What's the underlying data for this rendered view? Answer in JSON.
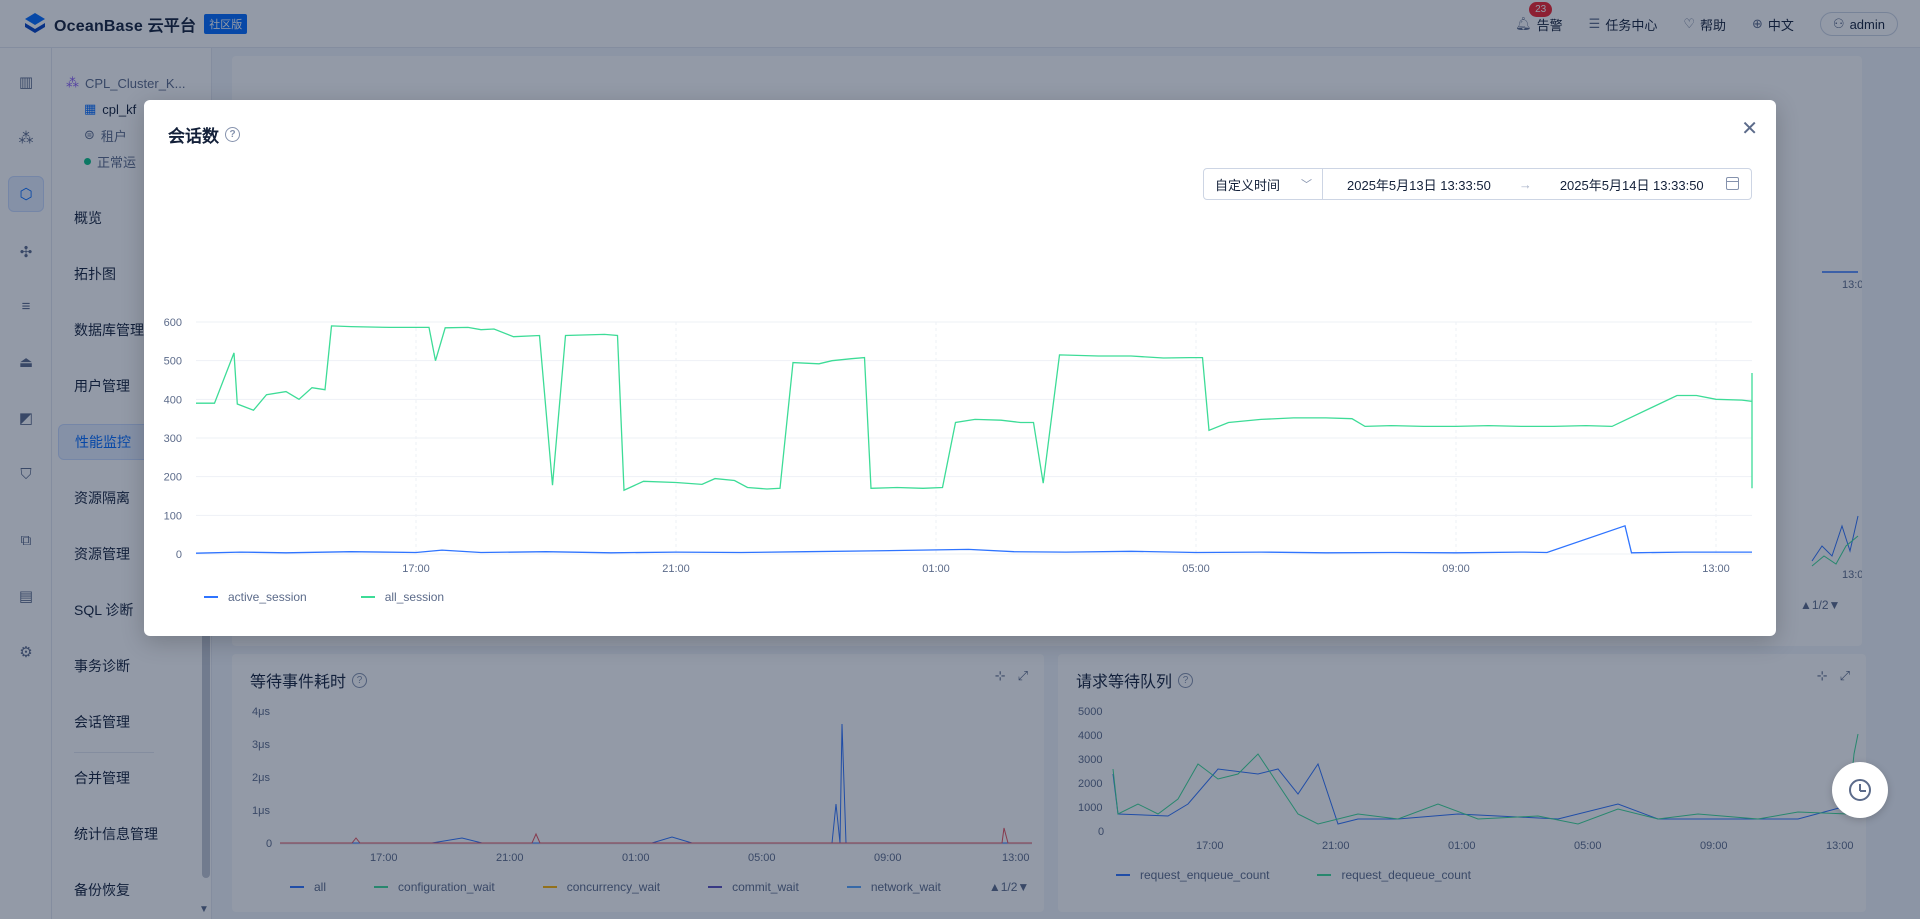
{
  "topbar": {
    "brand": "OceanBase 云平台",
    "edition_tag": "社区版",
    "alerts_label": "告警",
    "alerts_count": "23",
    "tasks_label": "任务中心",
    "help_label": "帮助",
    "lang_label": "中文",
    "user_label": "admin"
  },
  "sidebar": {
    "cluster_name": "CPL_Cluster_K...",
    "tenant_name": "cpl_kf",
    "tenant_type": "租户",
    "status_text": "正常运",
    "items": [
      {
        "label": "概览"
      },
      {
        "label": "拓扑图"
      },
      {
        "label": "数据库管理"
      },
      {
        "label": "用户管理"
      },
      {
        "label": "性能监控"
      },
      {
        "label": "资源隔离"
      },
      {
        "label": "资源管理"
      },
      {
        "label": "SQL 诊断"
      },
      {
        "label": "事务诊断"
      },
      {
        "label": "会话管理"
      },
      {
        "label": "合并管理"
      },
      {
        "label": "统计信息管理"
      },
      {
        "label": "备份恢复"
      }
    ],
    "rail_icons": [
      "bar-chart-icon",
      "cluster-icon",
      "tenant-icon",
      "topology-icon",
      "list-icon",
      "alarm-icon",
      "monitor-icon",
      "shield-icon",
      "copy-icon",
      "report-icon",
      "settings-icon"
    ]
  },
  "background": {
    "top_right_ticks": [
      "13:00"
    ],
    "mid_right_ticks": [
      "13:00"
    ],
    "mid_right_pager": "▲1/2▼",
    "wait_panel": {
      "title": "等待事件耗时",
      "y_ticks": [
        "4μs",
        "3μs",
        "2μs",
        "1μs",
        "0"
      ],
      "x_ticks": [
        "17:00",
        "21:00",
        "01:00",
        "05:00",
        "09:00",
        "13:00"
      ],
      "legend": [
        "all",
        "configuration_wait",
        "concurrency_wait",
        "commit_wait",
        "network_wait"
      ],
      "pager": "▲1/2▼"
    },
    "queue_panel": {
      "title": "请求等待队列",
      "y_ticks": [
        "5000",
        "4000",
        "3000",
        "2000",
        "1000",
        "0"
      ],
      "x_ticks": [
        "17:00",
        "21:00",
        "01:00",
        "05:00",
        "09:00",
        "13:00"
      ],
      "legend": [
        "request_enqueue_count",
        "request_dequeue_count"
      ]
    }
  },
  "modal": {
    "title": "会话数",
    "time_mode": "自定义时间",
    "start_time": "2025年5月13日 13:33:50",
    "end_time": "2025年5月14日 13:33:50",
    "time_arrow": "→",
    "colors": {
      "active_session": "#2f74ff",
      "all_session": "#3ddc97"
    }
  },
  "chart_data": {
    "type": "line",
    "title": "会话数",
    "x_ticks": [
      "17:00",
      "21:00",
      "01:00",
      "05:00",
      "09:00",
      "13:00"
    ],
    "y_ticks": [
      0,
      100,
      200,
      300,
      400,
      500,
      600
    ],
    "ylim": [
      0,
      600
    ],
    "xlim_hours": [
      13.56,
      37.56
    ],
    "grid": true,
    "legend_position": "bottom-left",
    "series": [
      {
        "name": "active_session",
        "color": "#2f74ff",
        "points": [
          [
            13.56,
            2
          ],
          [
            14.3,
            5
          ],
          [
            15.0,
            3
          ],
          [
            16.0,
            6
          ],
          [
            17.0,
            4
          ],
          [
            17.4,
            10
          ],
          [
            18.0,
            4
          ],
          [
            19.0,
            6
          ],
          [
            20.0,
            3
          ],
          [
            21.0,
            5
          ],
          [
            22.0,
            4
          ],
          [
            23.0,
            6
          ],
          [
            24.0,
            8
          ],
          [
            25.5,
            12
          ],
          [
            26.2,
            6
          ],
          [
            27.0,
            5
          ],
          [
            28.0,
            7
          ],
          [
            29.0,
            4
          ],
          [
            30.0,
            5
          ],
          [
            31.0,
            3
          ],
          [
            32.0,
            4
          ],
          [
            33.0,
            3
          ],
          [
            34.0,
            5
          ],
          [
            34.4,
            4
          ],
          [
            35.6,
            73
          ],
          [
            35.7,
            3
          ],
          [
            36.5,
            5
          ],
          [
            37.56,
            5
          ]
        ]
      },
      {
        "name": "all_session",
        "color": "#3ddc97",
        "points": [
          [
            13.56,
            390
          ],
          [
            13.8,
            390
          ],
          [
            13.9,
            390
          ],
          [
            14.2,
            520
          ],
          [
            14.25,
            388
          ],
          [
            14.5,
            372
          ],
          [
            14.7,
            412
          ],
          [
            15.0,
            420
          ],
          [
            15.2,
            400
          ],
          [
            15.4,
            430
          ],
          [
            15.6,
            425
          ],
          [
            15.7,
            590
          ],
          [
            16.0,
            588
          ],
          [
            16.6,
            586
          ],
          [
            17.0,
            586
          ],
          [
            17.2,
            586
          ],
          [
            17.3,
            500
          ],
          [
            17.45,
            585
          ],
          [
            17.8,
            586
          ],
          [
            18.0,
            580
          ],
          [
            18.2,
            582
          ],
          [
            18.5,
            562
          ],
          [
            18.9,
            565
          ],
          [
            19.1,
            178
          ],
          [
            19.3,
            565
          ],
          [
            19.9,
            568
          ],
          [
            20.1,
            565
          ],
          [
            20.2,
            165
          ],
          [
            20.5,
            188
          ],
          [
            21.0,
            185
          ],
          [
            21.4,
            180
          ],
          [
            21.6,
            195
          ],
          [
            21.9,
            190
          ],
          [
            22.1,
            172
          ],
          [
            22.4,
            168
          ],
          [
            22.6,
            170
          ],
          [
            22.8,
            495
          ],
          [
            23.2,
            492
          ],
          [
            23.4,
            500
          ],
          [
            23.7,
            505
          ],
          [
            23.9,
            508
          ],
          [
            24.0,
            170
          ],
          [
            24.4,
            172
          ],
          [
            24.8,
            170
          ],
          [
            25.1,
            172
          ],
          [
            25.3,
            340
          ],
          [
            25.6,
            348
          ],
          [
            26.0,
            346
          ],
          [
            26.3,
            340
          ],
          [
            26.5,
            340
          ],
          [
            26.65,
            183
          ],
          [
            26.9,
            515
          ],
          [
            27.5,
            512
          ],
          [
            28.0,
            512
          ],
          [
            28.5,
            507
          ],
          [
            28.9,
            508
          ],
          [
            29.1,
            508
          ],
          [
            29.2,
            320
          ],
          [
            29.5,
            340
          ],
          [
            30.0,
            348
          ],
          [
            30.5,
            352
          ],
          [
            31.0,
            352
          ],
          [
            31.4,
            350
          ],
          [
            31.6,
            330
          ],
          [
            32.0,
            332
          ],
          [
            32.5,
            330
          ],
          [
            33.0,
            330
          ],
          [
            33.5,
            332
          ],
          [
            34.0,
            330
          ],
          [
            34.5,
            330
          ],
          [
            35.0,
            332
          ],
          [
            35.4,
            330
          ],
          [
            36.4,
            410
          ],
          [
            36.7,
            410
          ],
          [
            37.0,
            400
          ],
          [
            37.4,
            398
          ],
          [
            37.8,
            395
          ],
          [
            38.2,
            388
          ],
          [
            38.4,
            388
          ],
          [
            38.55,
            185
          ],
          [
            38.8,
            180
          ],
          [
            39.0,
            175
          ],
          [
            39.2,
            175
          ],
          [
            39.4,
            170
          ],
          [
            39.55,
            200
          ],
          [
            39.7,
            320
          ],
          [
            39.9,
            320
          ],
          [
            40.1,
            330
          ],
          [
            40.5,
            332
          ],
          [
            41.0,
            336
          ],
          [
            41.5,
            340
          ],
          [
            41.9,
            342
          ],
          [
            42.1,
            343
          ],
          [
            42.3,
            460
          ],
          [
            42.5,
            458
          ],
          [
            42.8,
            468
          ]
        ]
      }
    ]
  }
}
